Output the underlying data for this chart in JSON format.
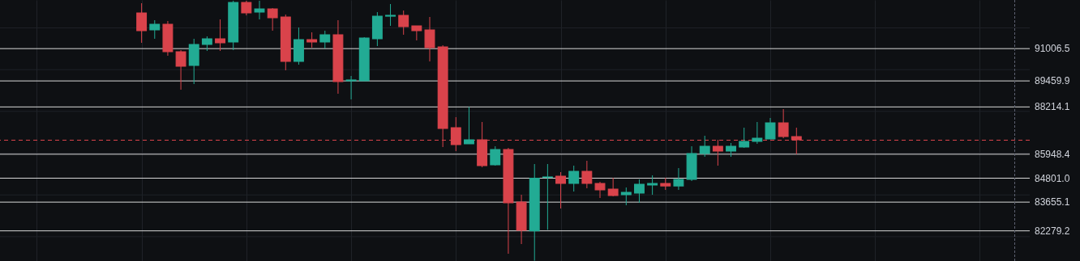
{
  "chart_data": {
    "type": "candlestick",
    "categories": [
      null,
      null,
      null,
      null,
      null,
      null,
      null,
      null,
      null,
      null,
      null,
      null,
      null,
      null,
      null,
      null,
      null,
      null,
      null,
      null,
      null,
      null,
      null,
      null,
      null,
      null,
      null,
      null,
      null,
      null,
      null,
      null,
      null,
      null,
      null,
      null,
      null,
      null,
      null,
      null,
      null,
      null,
      null,
      null,
      null,
      null,
      null,
      null,
      null,
      null,
      null,
      null,
      null,
      null,
      null,
      null,
      null,
      null,
      null,
      null,
      null,
      null,
      null,
      null,
      null,
      null,
      null,
      null,
      null,
      null,
      null,
      null,
      null,
      null,
      null,
      null,
      null,
      null
    ],
    "ohlc": [
      null,
      null,
      null,
      null,
      null,
      null,
      null,
      null,
      null,
      null,
      [
        92716,
        93180,
        91284,
        91865
      ],
      [
        91903,
        92368,
        91478,
        92174
      ],
      [
        92174,
        92329,
        90665,
        90858
      ],
      [
        90858,
        90936,
        89039,
        90162
      ],
      [
        90200,
        91478,
        89310,
        91207
      ],
      [
        91207,
        91594,
        90897,
        91478
      ],
      [
        91478,
        92406,
        90897,
        91284
      ],
      [
        91323,
        93300,
        90936,
        93219
      ],
      [
        93219,
        93300,
        92600,
        92716
      ],
      [
        92755,
        93300,
        92406,
        92909
      ],
      [
        92909,
        92948,
        91865,
        92484
      ],
      [
        92522,
        92639,
        89968,
        90394
      ],
      [
        90394,
        92019,
        90239,
        91439
      ],
      [
        91439,
        91787,
        91052,
        91323
      ],
      [
        91323,
        91865,
        91013,
        91671
      ],
      [
        91671,
        92368,
        88846,
        89426
      ],
      [
        89465,
        89697,
        88575,
        89504
      ],
      [
        89465,
        91555,
        89460,
        91516
      ],
      [
        91478,
        92755,
        91129,
        92561
      ],
      [
        92561,
        93142,
        92097,
        92600
      ],
      [
        92600,
        92832,
        91671,
        92058
      ],
      [
        92097,
        92097,
        91400,
        91865
      ],
      [
        91903,
        92522,
        90394,
        91052
      ],
      [
        91091,
        91168,
        86292,
        87182
      ],
      [
        87221,
        87724,
        86098,
        86408
      ],
      [
        86447,
        88214.1,
        86447,
        86640
      ],
      [
        86640,
        87492,
        85324,
        85401
      ],
      [
        85440,
        86331,
        85401,
        86176
      ],
      [
        86176,
        86253,
        81183,
        83621
      ],
      [
        83660,
        84008,
        81647,
        82305
      ],
      [
        82279.2,
        85479,
        80850,
        84801.0
      ],
      [
        84840,
        85479,
        82330,
        84860
      ],
      [
        84898,
        85092,
        83350,
        84550
      ],
      [
        84550,
        85401,
        84163,
        85131
      ],
      [
        85131,
        85634,
        84317,
        84550
      ],
      [
        84550,
        84627,
        83853,
        84240
      ],
      [
        84279,
        84820,
        83930,
        83969
      ],
      [
        84008,
        84356,
        83505,
        84124
      ],
      [
        84085,
        84743,
        83621,
        84511
      ],
      [
        84472,
        84937,
        84008,
        84550
      ],
      [
        84550,
        84820,
        84240,
        84433
      ],
      [
        84433,
        85285,
        84240,
        84743
      ],
      [
        84743,
        86331,
        84666,
        85982
      ],
      [
        85982,
        86834,
        85827,
        86331
      ],
      [
        86331,
        86640,
        85401,
        86098
      ],
      [
        86098,
        86486,
        85827,
        86331
      ],
      [
        86292,
        87221,
        86253,
        86563
      ],
      [
        86563,
        87492,
        86447,
        86717
      ],
      [
        86679,
        87685,
        86679,
        87453
      ],
      [
        87453,
        88111,
        86717,
        86795
      ],
      [
        86795,
        87221,
        85948.4,
        86640
      ],
      null,
      null,
      null,
      null,
      null,
      null,
      null,
      null,
      null,
      null,
      null,
      null,
      null,
      null,
      null,
      null,
      null
    ],
    "colors": [
      null,
      null,
      null,
      null,
      null,
      null,
      null,
      null,
      null,
      null,
      "#d9434b",
      "#22ab94",
      "#d9434b",
      "#d9434b",
      "#22ab94",
      "#22ab94",
      "#d9434b",
      "#22ab94",
      "#d9434b",
      "#22ab94",
      "#d9434b",
      "#d9434b",
      "#22ab94",
      "#d9434b",
      "#22ab94",
      "#d9434b",
      "#22ab94",
      "#22ab94",
      "#22ab94",
      "#22ab94",
      "#d9434b",
      "#d9434b",
      "#d9434b",
      "#d9434b",
      "#d9434b",
      "#22ab94",
      "#d9434b",
      "#22ab94",
      "#d9434b",
      "#d9434b",
      "#22ab94",
      "#22ab94",
      "#d9434b",
      "#22ab94",
      "#d9434b",
      "#d9434b",
      "#d9434b",
      "#22ab94",
      "#22ab94",
      "#22ab94",
      "#d9434b",
      "#22ab94",
      "#22ab94",
      "#22ab94",
      "#d9434b",
      "#22ab94",
      "#22ab94",
      "#22ab94",
      "#22ab94",
      "#d9434b",
      "#d9434b",
      null,
      null,
      null,
      null,
      null,
      null,
      null,
      null,
      null,
      null,
      null,
      null,
      null,
      null,
      null,
      null,
      null
    ],
    "ylim": [
      80835,
      93335
    ],
    "yticks": [
      {
        "value": 82000,
        "label": null
      },
      {
        "value": 84000,
        "label": null
      },
      {
        "value": 86000,
        "label": null
      },
      {
        "value": 88000,
        "label": null
      },
      {
        "value": 90000,
        "label": null
      },
      {
        "value": 92000,
        "label": null
      },
      82279.2,
      83655.1,
      {
        "value": 84801.0,
        "label": "84801.0"
      },
      85948.4,
      88214.1,
      89459.9,
      91006.5
    ],
    "grid": true,
    "tick_labels": "y",
    "ref_lines": [
      {
        "axis": "y",
        "value": 86620,
        "color": "#d9434b",
        "line_style": "dashed"
      }
    ]
  }
}
